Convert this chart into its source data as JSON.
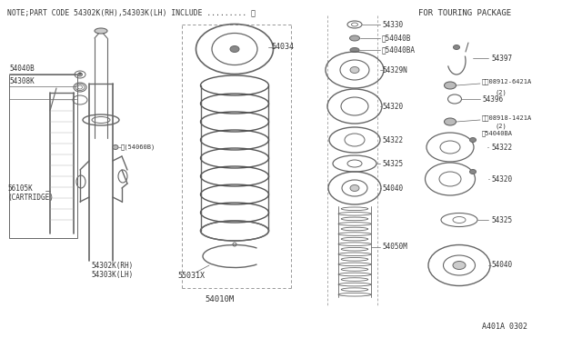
{
  "title_note": "NOTE;PART CODE 54302K(RH),54303K(LH) INCLUDE ......... ※",
  "title_touring": "FOR TOURING PACKAGE",
  "footer": "A401A 0302",
  "lc": "#666666",
  "tc": "#333333"
}
